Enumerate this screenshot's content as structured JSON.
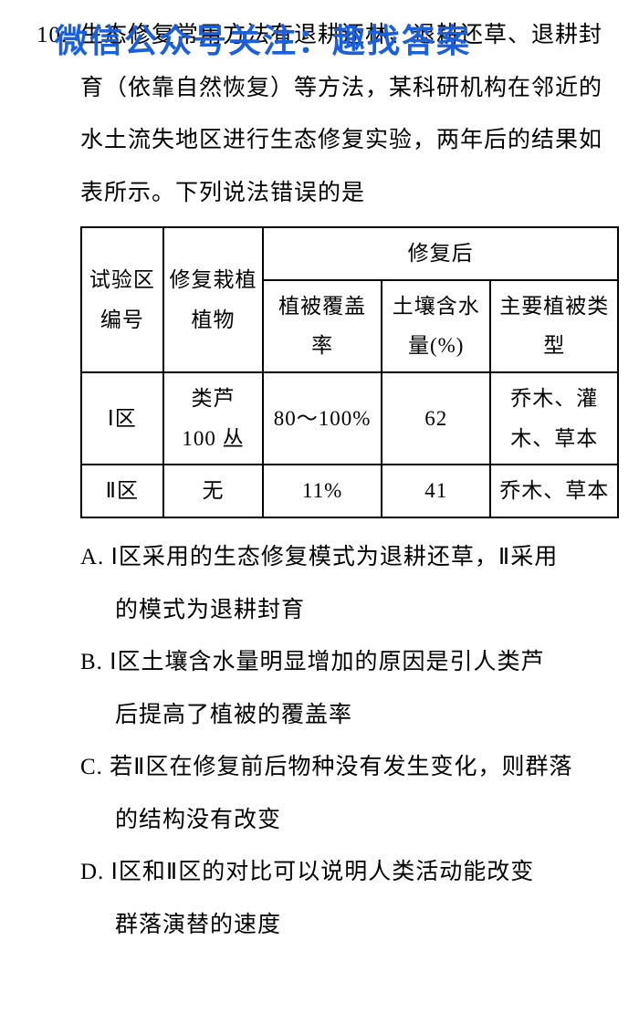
{
  "watermark": "微信公众号关注：趣找答案",
  "question": {
    "number": "10.",
    "stem": "生态修复常用方法有退耕还林、退耕还草、退耕封育（依靠自然恢复）等方法，某科研机构在邻近的水土流失地区进行生态修复实验，两年后的结果如表所示。下列说法错误的是"
  },
  "table": {
    "header": {
      "col1": "试验区编号",
      "col2": "修复栽植植物",
      "group": "修复后",
      "sub1": "植被覆盖率",
      "sub2": "土壤含水量(%)",
      "sub3": "主要植被类型"
    },
    "rows": [
      {
        "c1": "Ⅰ区",
        "c2": "类芦\n100 丛",
        "c3": "80～100%",
        "c4": "62",
        "c5": "乔木、灌木、草本"
      },
      {
        "c1": "Ⅱ区",
        "c2": "无",
        "c3": "11%",
        "c4": "41",
        "c5": "乔木、草本"
      }
    ],
    "col_widths": [
      "90px",
      "110px",
      "130px",
      "120px",
      "140px"
    ],
    "border_color": "#000000",
    "background_color": "#ffffff"
  },
  "options": {
    "A": {
      "line1": "A. Ⅰ区采用的生态修复模式为退耕还草，Ⅱ采用",
      "line2": "的模式为退耕封育"
    },
    "B": {
      "line1": "B. Ⅰ区土壤含水量明显增加的原因是引人类芦",
      "line2": "后提高了植被的覆盖率"
    },
    "C": {
      "line1": "C. 若Ⅱ区在修复前后物种没有发生变化，则群落",
      "line2": "的结构没有改变"
    },
    "D": {
      "line1": "D. Ⅰ区和Ⅱ区的对比可以说明人类活动能改变",
      "line2": "群落演替的速度"
    }
  }
}
